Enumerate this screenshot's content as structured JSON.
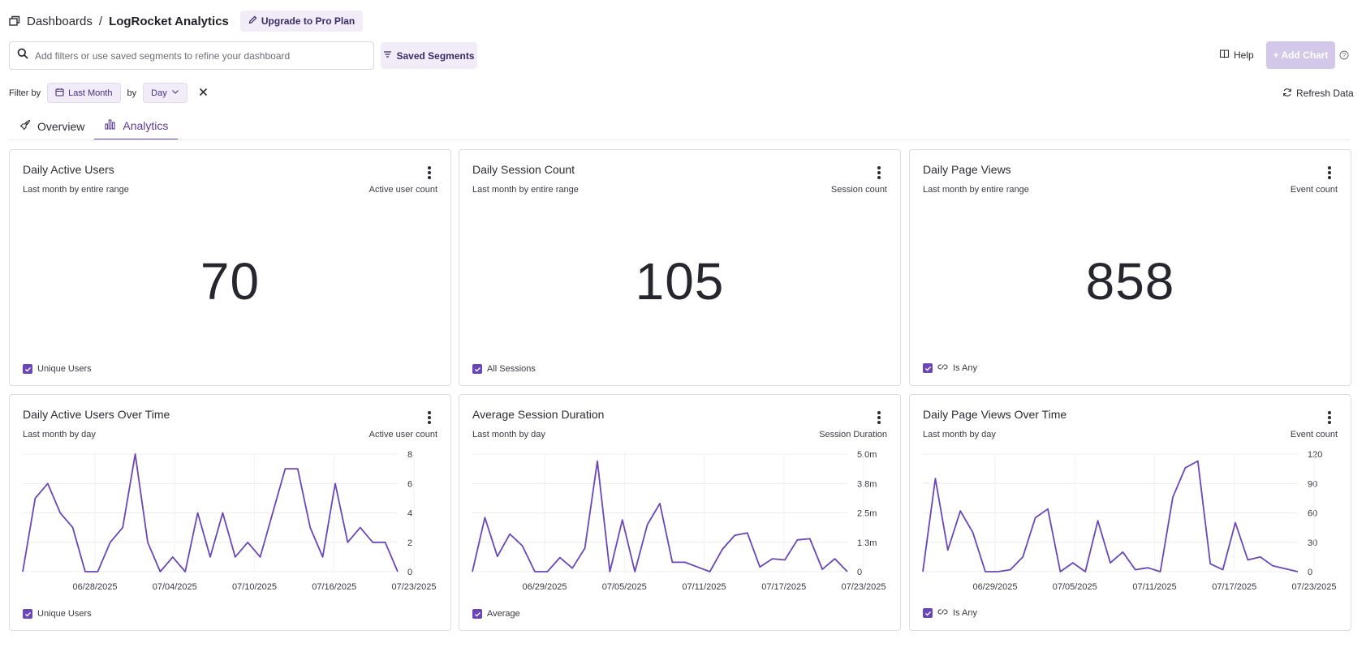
{
  "breadcrumb": {
    "parent": "Dashboards",
    "separator": "/",
    "current": "LogRocket Analytics"
  },
  "upgrade_label": "Upgrade to Pro Plan",
  "search": {
    "placeholder": "Add filters or use saved segments to refine your dashboard",
    "value": ""
  },
  "saved_segments_label": "Saved Segments",
  "help_label": "Help",
  "add_chart_label": "+ Add Chart",
  "filter": {
    "filter_by_label": "Filter by",
    "range": "Last Month",
    "by_label": "by",
    "granularity": "Day"
  },
  "refresh_label": "Refresh Data",
  "tabs": [
    {
      "label": "Overview",
      "icon": "rocket-icon",
      "active": false
    },
    {
      "label": "Analytics",
      "icon": "bar-chart-icon",
      "active": true
    }
  ],
  "colors": {
    "accent": "#6b46b8",
    "line": "#6b46b8",
    "chip_bg": "#f1ecf8"
  },
  "cards": [
    {
      "title": "Daily Active Users",
      "subtitle": "Last month by entire range",
      "metric": "Active user count",
      "value": "70",
      "legend": "Unique Users"
    },
    {
      "title": "Daily Session Count",
      "subtitle": "Last month by entire range",
      "metric": "Session count",
      "value": "105",
      "legend": "All Sessions"
    },
    {
      "title": "Daily Page Views",
      "subtitle": "Last month by entire range",
      "metric": "Event count",
      "value": "858",
      "legend": "Is Any"
    },
    {
      "title": "Daily Active Users Over Time",
      "subtitle": "Last month by day",
      "metric": "Active user count",
      "legend": "Unique Users"
    },
    {
      "title": "Average Session Duration",
      "subtitle": "Last month by day",
      "metric": "Session Duration",
      "legend": "Average"
    },
    {
      "title": "Daily Page Views Over Time",
      "subtitle": "Last month by day",
      "metric": "Event count",
      "legend": "Is Any"
    }
  ],
  "chart_data": [
    {
      "type": "line",
      "title": "Daily Active Users Over Time",
      "ylabel": "Active user count",
      "x_ticks": [
        "06/28/2025",
        "07/04/2025",
        "07/10/2025",
        "07/16/2025",
        "07/23/2025"
      ],
      "y_ticks": [
        "8",
        "6",
        "4",
        "2",
        "0"
      ],
      "ylim": [
        0,
        8
      ],
      "series": [
        {
          "name": "Unique Users",
          "values": [
            0,
            5,
            6,
            4,
            3,
            0,
            0,
            2,
            3,
            8,
            2,
            0,
            1,
            0,
            4,
            1,
            4,
            1,
            2,
            1,
            4,
            7,
            7,
            3,
            1,
            6,
            2,
            3,
            2,
            2,
            0
          ]
        }
      ]
    },
    {
      "type": "line",
      "title": "Average Session Duration",
      "ylabel": "Session Duration",
      "x_ticks": [
        "06/29/2025",
        "07/05/2025",
        "07/11/2025",
        "07/17/2025",
        "07/23/2025"
      ],
      "y_ticks": [
        "5.0m",
        "3.8m",
        "2.5m",
        "1.3m",
        "0"
      ],
      "ylim": [
        0,
        5
      ],
      "series": [
        {
          "name": "Average",
          "values": [
            0,
            2.3,
            0.65,
            1.6,
            1.1,
            0,
            0,
            0.6,
            0.15,
            1.0,
            4.7,
            0,
            2.2,
            0,
            2.0,
            2.9,
            0.4,
            0.4,
            0.2,
            0,
            0.95,
            1.55,
            1.65,
            0.2,
            0.55,
            0.5,
            1.35,
            1.4,
            0.1,
            0.55,
            0
          ]
        }
      ]
    },
    {
      "type": "line",
      "title": "Daily Page Views Over Time",
      "ylabel": "Event count",
      "x_ticks": [
        "06/29/2025",
        "07/05/2025",
        "07/11/2025",
        "07/17/2025",
        "07/23/2025"
      ],
      "y_ticks": [
        "120",
        "90",
        "60",
        "30",
        "0"
      ],
      "ylim": [
        0,
        120
      ],
      "series": [
        {
          "name": "Is Any",
          "values": [
            0,
            95,
            22,
            62,
            40,
            0,
            0,
            2,
            15,
            55,
            64,
            0,
            9,
            0,
            52,
            9,
            20,
            2,
            4,
            0,
            76,
            106,
            113,
            8,
            2,
            50,
            12,
            15,
            6,
            3,
            0
          ]
        }
      ]
    }
  ]
}
